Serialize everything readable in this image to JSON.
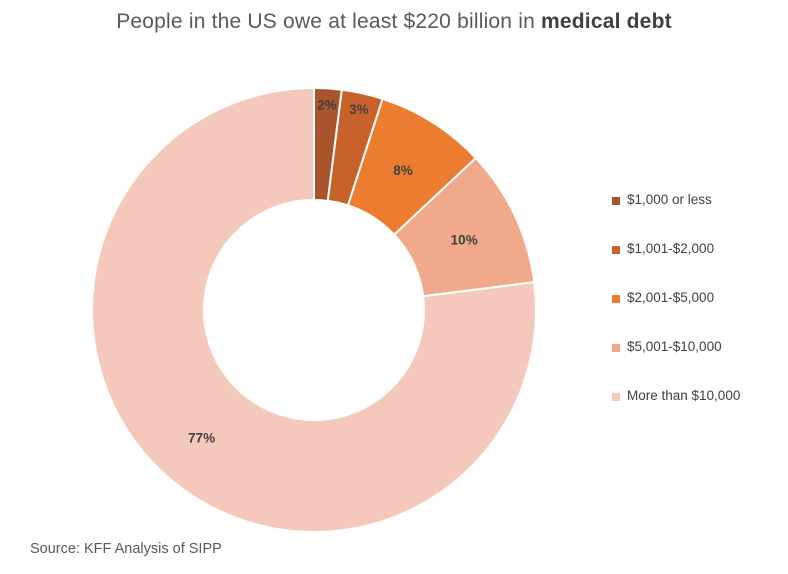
{
  "title": {
    "prefix": "People in the US owe at least $220 billion in ",
    "emphasis": "medical debt"
  },
  "source": "Source: KFF Analysis of SIPP",
  "chart_data": {
    "type": "pie",
    "variant": "donut",
    "legend_position": "right",
    "categories": [
      "$1,000 or less",
      "$1,001-$2,000",
      "$2,001-$5,000",
      "$5,001-$10,000",
      "More than $10,000"
    ],
    "values": [
      2,
      3,
      8,
      10,
      77
    ],
    "labels": [
      "2%",
      "3%",
      "8%",
      "10%",
      "77%"
    ],
    "colors": [
      "#a9542a",
      "#c8622a",
      "#ec7d30",
      "#f0a98a",
      "#f4c9bb"
    ]
  }
}
